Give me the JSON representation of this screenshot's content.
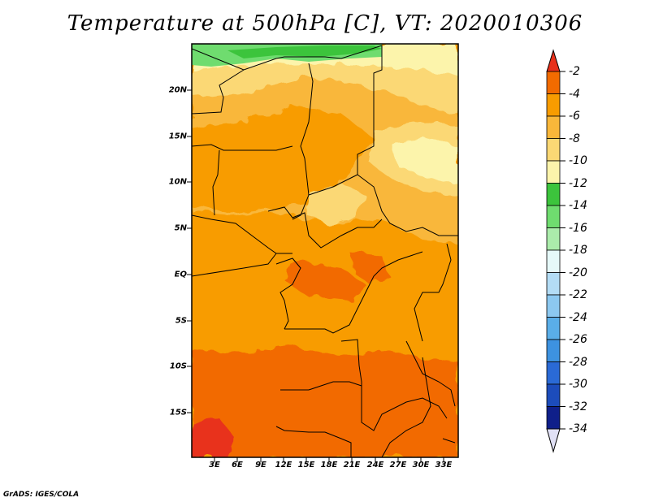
{
  "map": {
    "title": "Temperature at 500hPa [C], VT: 2020010306",
    "lat_ticks": [
      "20N",
      "15N",
      "10N",
      "5N",
      "EQ",
      "5S",
      "10S",
      "15S"
    ],
    "lon_ticks": [
      "3E",
      "6E",
      "9E",
      "12E",
      "15E",
      "18E",
      "21E",
      "24E",
      "27E",
      "30E",
      "33E"
    ],
    "credit": "GrADS: IGES/COLA"
  },
  "colorbar": {
    "labels": [
      "-2",
      "-4",
      "-6",
      "-8",
      "-10",
      "-12",
      "-14",
      "-16",
      "-18",
      "-20",
      "-22",
      "-24",
      "-26",
      "-28",
      "-30",
      "-32",
      "-34"
    ],
    "colors": [
      "#e8301a",
      "#f26b00",
      "#f89c00",
      "#f9b73a",
      "#fbd874",
      "#fcf4ab",
      "#3cc43c",
      "#6fdc6f",
      "#abecab",
      "#e6f9f9",
      "#b3dcf5",
      "#8cc8f0",
      "#5aaee8",
      "#3d92e0",
      "#2a6ad6",
      "#1c4cbb",
      "#0f1f8a",
      "#e0e0f5"
    ]
  }
}
